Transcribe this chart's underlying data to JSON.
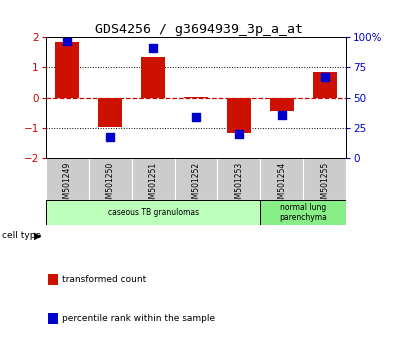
{
  "title": "GDS4256 / g3694939_3p_a_at",
  "samples": [
    "GSM501249",
    "GSM501250",
    "GSM501251",
    "GSM501252",
    "GSM501253",
    "GSM501254",
    "GSM501255"
  ],
  "red_values": [
    1.85,
    -0.95,
    1.35,
    0.03,
    -1.15,
    -0.45,
    0.85
  ],
  "blue_values": [
    1.88,
    -1.28,
    1.63,
    -0.62,
    -1.2,
    -0.58,
    0.7
  ],
  "ylim": [
    -2,
    2
  ],
  "yticks_left": [
    -2,
    -1,
    0,
    1,
    2
  ],
  "yticks_right": [
    0,
    25,
    50,
    75,
    100
  ],
  "right_axis_color": "#0000cc",
  "left_axis_color": "#cc0000",
  "bar_color": "#cc1100",
  "dot_color": "#0000cc",
  "hline0_color": "#cc0000",
  "grid_color": "#000000",
  "bg_color": "#ffffff",
  "cell_types": [
    {
      "label": "caseous TB granulomas",
      "start": 0,
      "end": 5,
      "color": "#bbffbb"
    },
    {
      "label": "normal lung\nparenchyma",
      "start": 5,
      "end": 7,
      "color": "#88ee88"
    }
  ],
  "legend_red": "transformed count",
  "legend_blue": "percentile rank within the sample",
  "bar_width": 0.55,
  "dot_size": 28
}
